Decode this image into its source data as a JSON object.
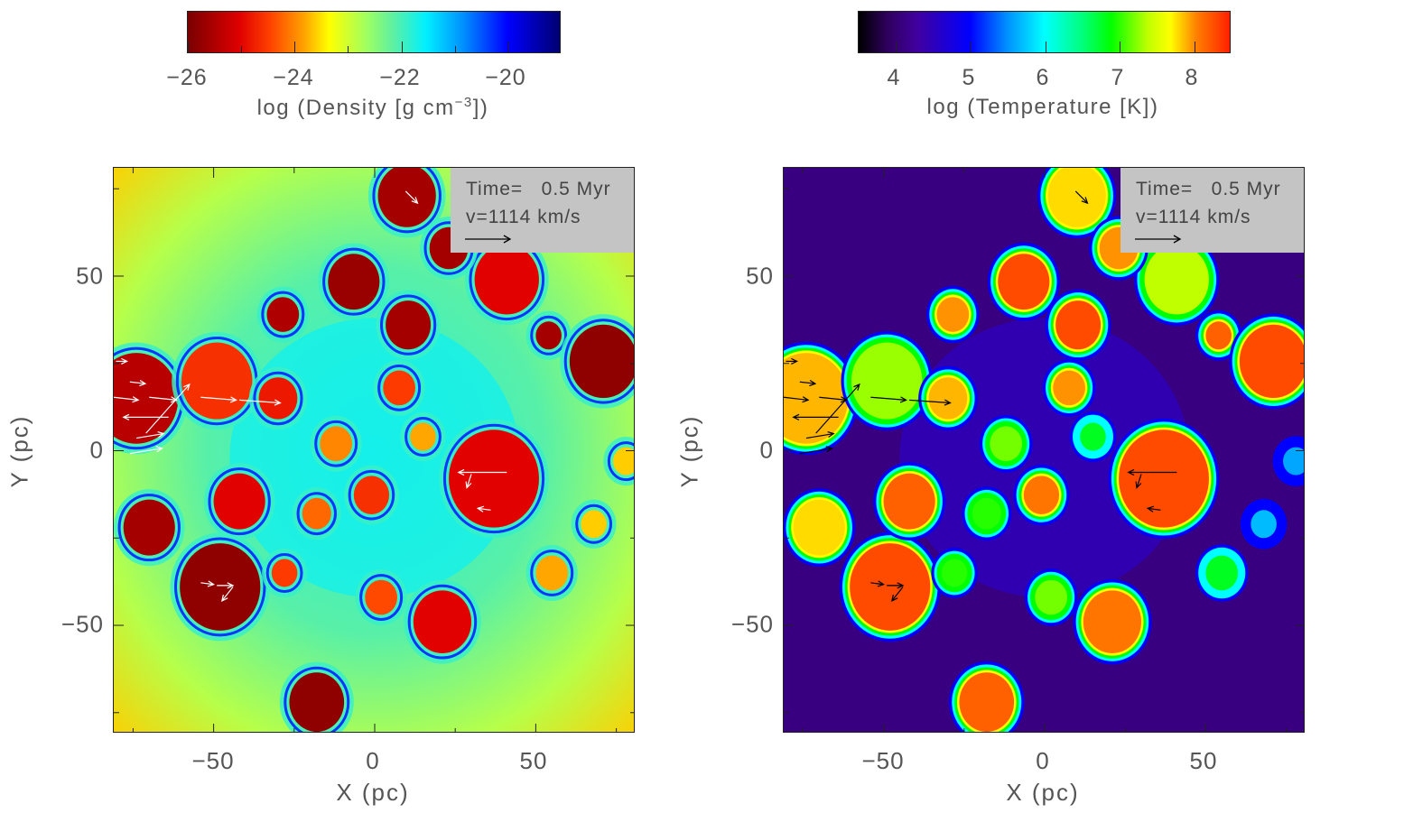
{
  "chart_data": [
    {
      "type": "heatmap",
      "quantity": "density",
      "xlabel": "X (pc)",
      "ylabel": "Y (pc)",
      "xlim": [
        -81,
        81
      ],
      "ylim": [
        -81,
        81
      ],
      "xticks": [
        "−50",
        "0",
        "50"
      ],
      "xtick_values": [
        -50,
        0,
        50
      ],
      "yticks": [
        "50",
        "0",
        "−50"
      ],
      "ytick_values": [
        50,
        0,
        -50
      ],
      "colorbar": {
        "title_main": "log (Density [g cm",
        "title_sup": "−3",
        "title_end": "])",
        "range": [
          -26,
          -19
        ],
        "ticks": [
          "−26",
          "−24",
          "−22",
          "−20"
        ],
        "tick_values": [
          -26,
          -24,
          -22,
          -20
        ],
        "minor_ticks": [
          -25,
          -23,
          -21
        ],
        "colormap": "reversed rainbow (dark red → yellow → cyan → dark blue)",
        "position": "top"
      },
      "annotation": {
        "time": "Time=   0.5 Myr",
        "velocity": "v=1114 km/s"
      },
      "vector_color": "#ffffff",
      "background_edge_value": -23.2,
      "background_center_value": -21.8
    },
    {
      "type": "heatmap",
      "quantity": "temperature",
      "xlabel": "X (pc)",
      "ylabel": "Y (pc)",
      "xlim": [
        -81,
        81
      ],
      "ylim": [
        -81,
        81
      ],
      "xticks": [
        "−50",
        "0",
        "50"
      ],
      "xtick_values": [
        -50,
        0,
        50
      ],
      "yticks": [
        "50",
        "0",
        "−50"
      ],
      "ytick_values": [
        50,
        0,
        -50
      ],
      "colorbar": {
        "title": "log (Temperature [K])",
        "range": [
          3.5,
          8.5
        ],
        "ticks": [
          "4",
          "5",
          "6",
          "7",
          "8"
        ],
        "tick_values": [
          4,
          5,
          6,
          7,
          8
        ],
        "colormap": "rainbow (black → purple → blue → cyan → green → yellow → red)",
        "position": "top"
      },
      "annotation": {
        "time": "Time=   0.5 Myr",
        "velocity": "v=1114 km/s"
      },
      "vector_color": "#000000",
      "background_value": 4.1
    }
  ],
  "features": [
    {
      "x": -6.5,
      "y": 48.4,
      "r": 8,
      "density": -25.7,
      "temperature": 8.3
    },
    {
      "x": 10.4,
      "y": 36,
      "r": 7,
      "density": -25.6,
      "temperature": 8.3
    },
    {
      "x": -28.5,
      "y": 39,
      "r": 5,
      "density": -25.5,
      "temperature": 8.0
    },
    {
      "x": 54,
      "y": 33,
      "r": 4,
      "density": -25.6,
      "temperature": 8.2
    },
    {
      "x": 71,
      "y": 25.6,
      "r": 10.5,
      "density": -25.8,
      "temperature": 8.3
    },
    {
      "x": -48,
      "y": -39,
      "r": 12.5,
      "density": -25.8,
      "temperature": 8.3
    },
    {
      "x": -18,
      "y": -72,
      "r": 8.5,
      "density": -25.8,
      "temperature": 8.2
    },
    {
      "x": 37,
      "y": -8,
      "r": 14,
      "density": -25.0,
      "temperature": 8.3
    },
    {
      "x": 21,
      "y": -49,
      "r": 9,
      "density": -25.0,
      "temperature": 8.1
    },
    {
      "x": -42,
      "y": -14.5,
      "r": 8,
      "density": -25.0,
      "temperature": 8.2
    },
    {
      "x": -1,
      "y": -12.7,
      "r": 5.5,
      "density": -24.6,
      "temperature": 8.1
    },
    {
      "x": -70,
      "y": -22,
      "r": 8,
      "density": -25.6,
      "temperature": 7.8
    },
    {
      "x": -74,
      "y": 15,
      "r": 13,
      "density": -25.4,
      "temperature": 7.9
    },
    {
      "x": -49,
      "y": 20,
      "r": 11,
      "density": -24.6,
      "temperature": 7.3
    },
    {
      "x": 10,
      "y": 73,
      "r": 9,
      "density": -25.6,
      "temperature": 7.8
    },
    {
      "x": 41,
      "y": 49,
      "r": 10,
      "density": -25.0,
      "temperature": 7.4
    },
    {
      "x": 23,
      "y": 58,
      "r": 6,
      "density": -25.6,
      "temperature": 8.0
    },
    {
      "x": 68,
      "y": -21,
      "r": 4,
      "density": -23.6,
      "temperature": 5.7
    },
    {
      "x": 78,
      "y": -3,
      "r": 4,
      "density": -23.6,
      "temperature": 5.6
    },
    {
      "x": 7.6,
      "y": 18,
      "r": 5,
      "density": -24.5,
      "temperature": 8.0
    },
    {
      "x": -12,
      "y": 2,
      "r": 5,
      "density": -24.0,
      "temperature": 7.2
    },
    {
      "x": -30,
      "y": 15,
      "r": 6,
      "density": -24.8,
      "temperature": 7.9
    },
    {
      "x": -28,
      "y": -35,
      "r": 4,
      "density": -24.5,
      "temperature": 7.0
    },
    {
      "x": 2,
      "y": -42,
      "r": 5,
      "density": -24.4,
      "temperature": 7.2
    },
    {
      "x": 15,
      "y": 4,
      "r": 4,
      "density": -23.8,
      "temperature": 6.8
    },
    {
      "x": -18,
      "y": -18,
      "r": 4.5,
      "density": -24.2,
      "temperature": 7.0
    },
    {
      "x": 55,
      "y": -35,
      "r": 5,
      "density": -23.8,
      "temperature": 6.8
    }
  ],
  "vectors": [
    {
      "x": -80.3,
      "y": 25.6,
      "dx": 3.4,
      "dy": 0
    },
    {
      "x": -76,
      "y": 19.7,
      "dx": 4.8,
      "dy": -0.5
    },
    {
      "x": -81,
      "y": 15.3,
      "dx": 7.6,
      "dy": -0.8
    },
    {
      "x": -70,
      "y": 15.3,
      "dx": 8.5,
      "dy": -0.8
    },
    {
      "x": -54,
      "y": 15.3,
      "dx": 11,
      "dy": -0.8
    },
    {
      "x": -42,
      "y": 14.5,
      "dx": 12.7,
      "dy": -0.8
    },
    {
      "x": -64,
      "y": 9.6,
      "dx": -14,
      "dy": 0
    },
    {
      "x": -74,
      "y": 3.6,
      "dx": 8.5,
      "dy": 1.3
    },
    {
      "x": -76,
      "y": -0.8,
      "dx": 10,
      "dy": 1.5
    },
    {
      "x": -71,
      "y": 5,
      "dx": 13.5,
      "dy": 14
    },
    {
      "x": 41,
      "y": -6.2,
      "dx": -15,
      "dy": 0
    },
    {
      "x": 30,
      "y": -6.7,
      "dx": -1.4,
      "dy": -3.9
    },
    {
      "x": 36,
      "y": -17,
      "dx": -4,
      "dy": 0.5
    },
    {
      "x": -54,
      "y": -37.8,
      "dx": 4,
      "dy": -0.5
    },
    {
      "x": -49,
      "y": -38.6,
      "dx": 5,
      "dy": 0
    },
    {
      "x": -44,
      "y": -39,
      "dx": -3.4,
      "dy": -4
    },
    {
      "x": 9.6,
      "y": 74.3,
      "dx": 3.7,
      "dy": -3.4
    }
  ]
}
